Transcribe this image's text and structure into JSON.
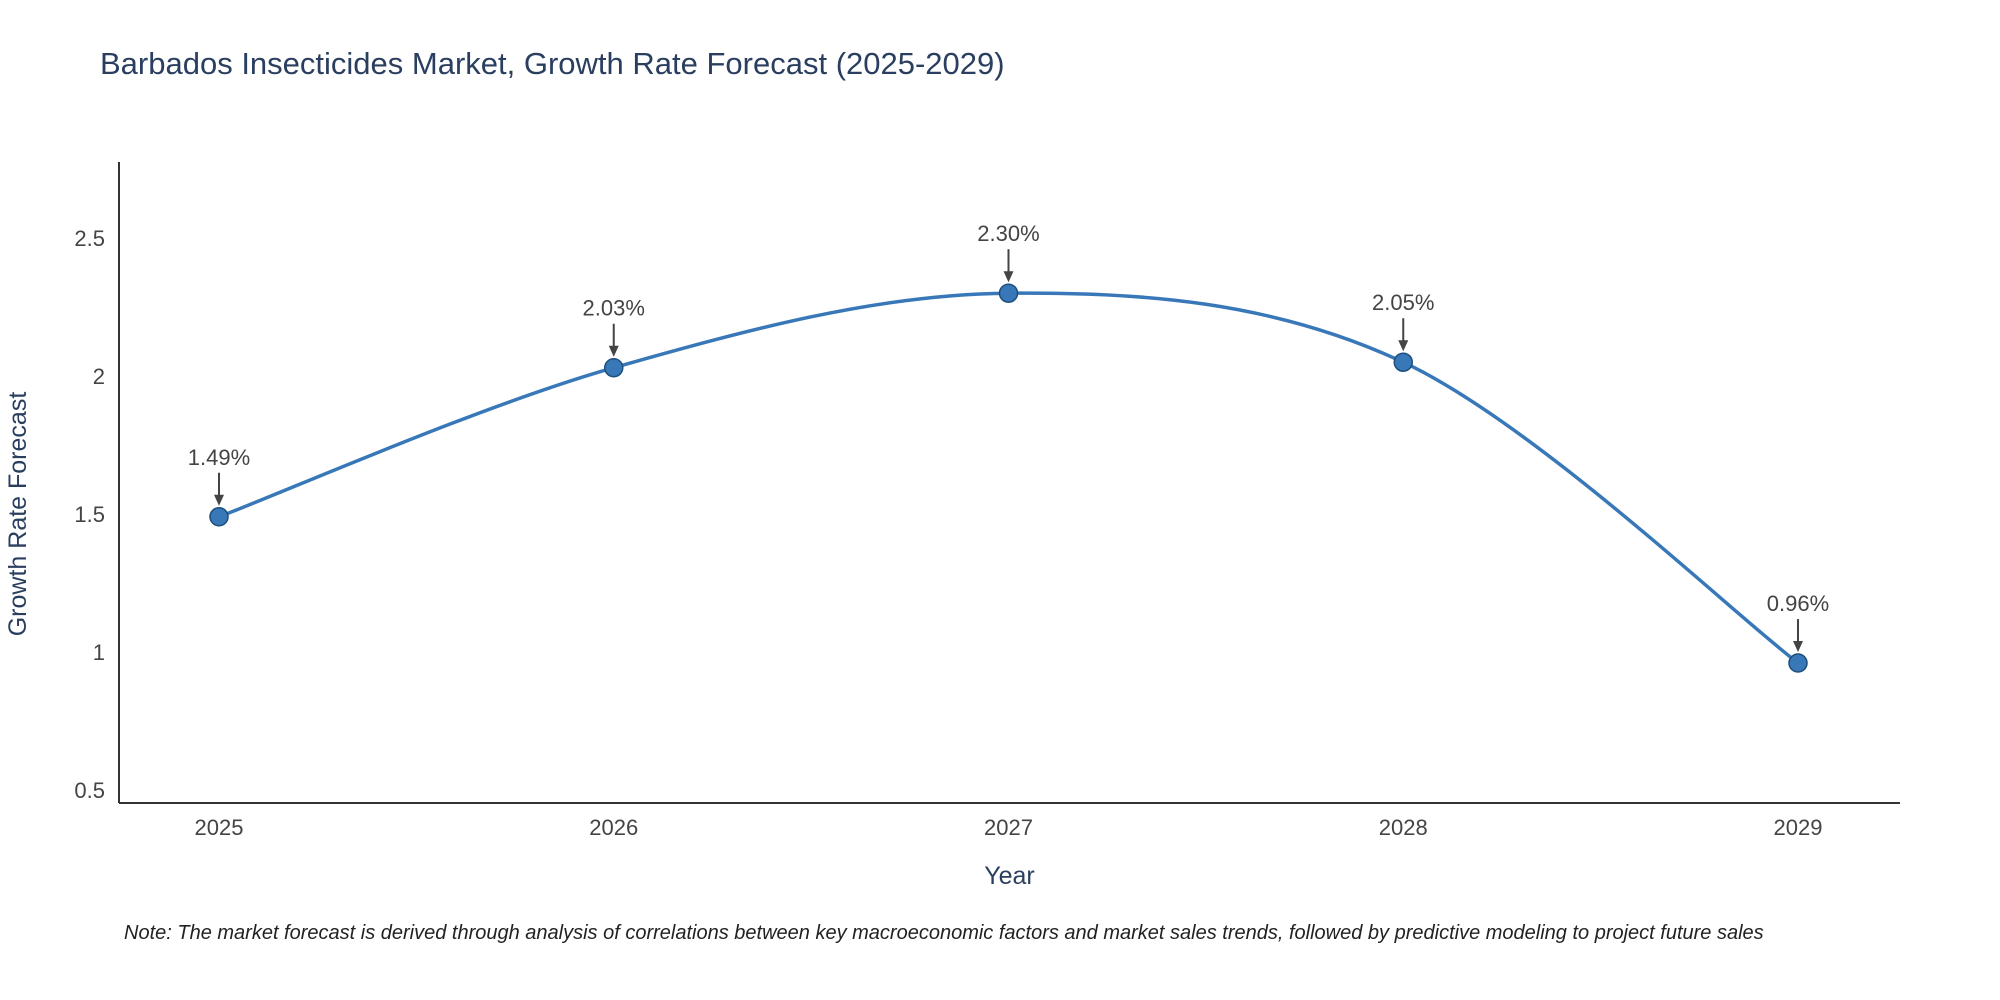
{
  "note": "Note: The market forecast is derived through analysis of correlations between key macroeconomic factors and market sales trends, followed by predictive modeling to project future sales",
  "chart_data": {
    "type": "line",
    "title": "Barbados Insecticides Market, Growth Rate Forecast (2025-2029)",
    "x": [
      2025,
      2026,
      2027,
      2028,
      2029
    ],
    "values": [
      1.49,
      2.03,
      2.3,
      2.05,
      0.96
    ],
    "point_labels": [
      "1.49%",
      "2.03%",
      "2.30%",
      "2.05%",
      "0.96%"
    ],
    "xlabel": "Year",
    "ylabel": "Growth Rate Forecast",
    "ylim": [
      0.5,
      2.5
    ],
    "ytick_labels": [
      "0.5",
      "1",
      "1.5",
      "2",
      "2.5"
    ],
    "line_shape": "spline",
    "grid": false,
    "legend": "none",
    "line_color": "#3878b8",
    "marker_color": "#3878b8",
    "marker_edge_color": "#1d4f7c",
    "annotation_color": "#444444",
    "axis_line_color": "#333333",
    "tick_color": "#444444",
    "axis_title_color": "#2a3f5f",
    "title_color": "#2a3f5f",
    "background": "#ffffff"
  }
}
